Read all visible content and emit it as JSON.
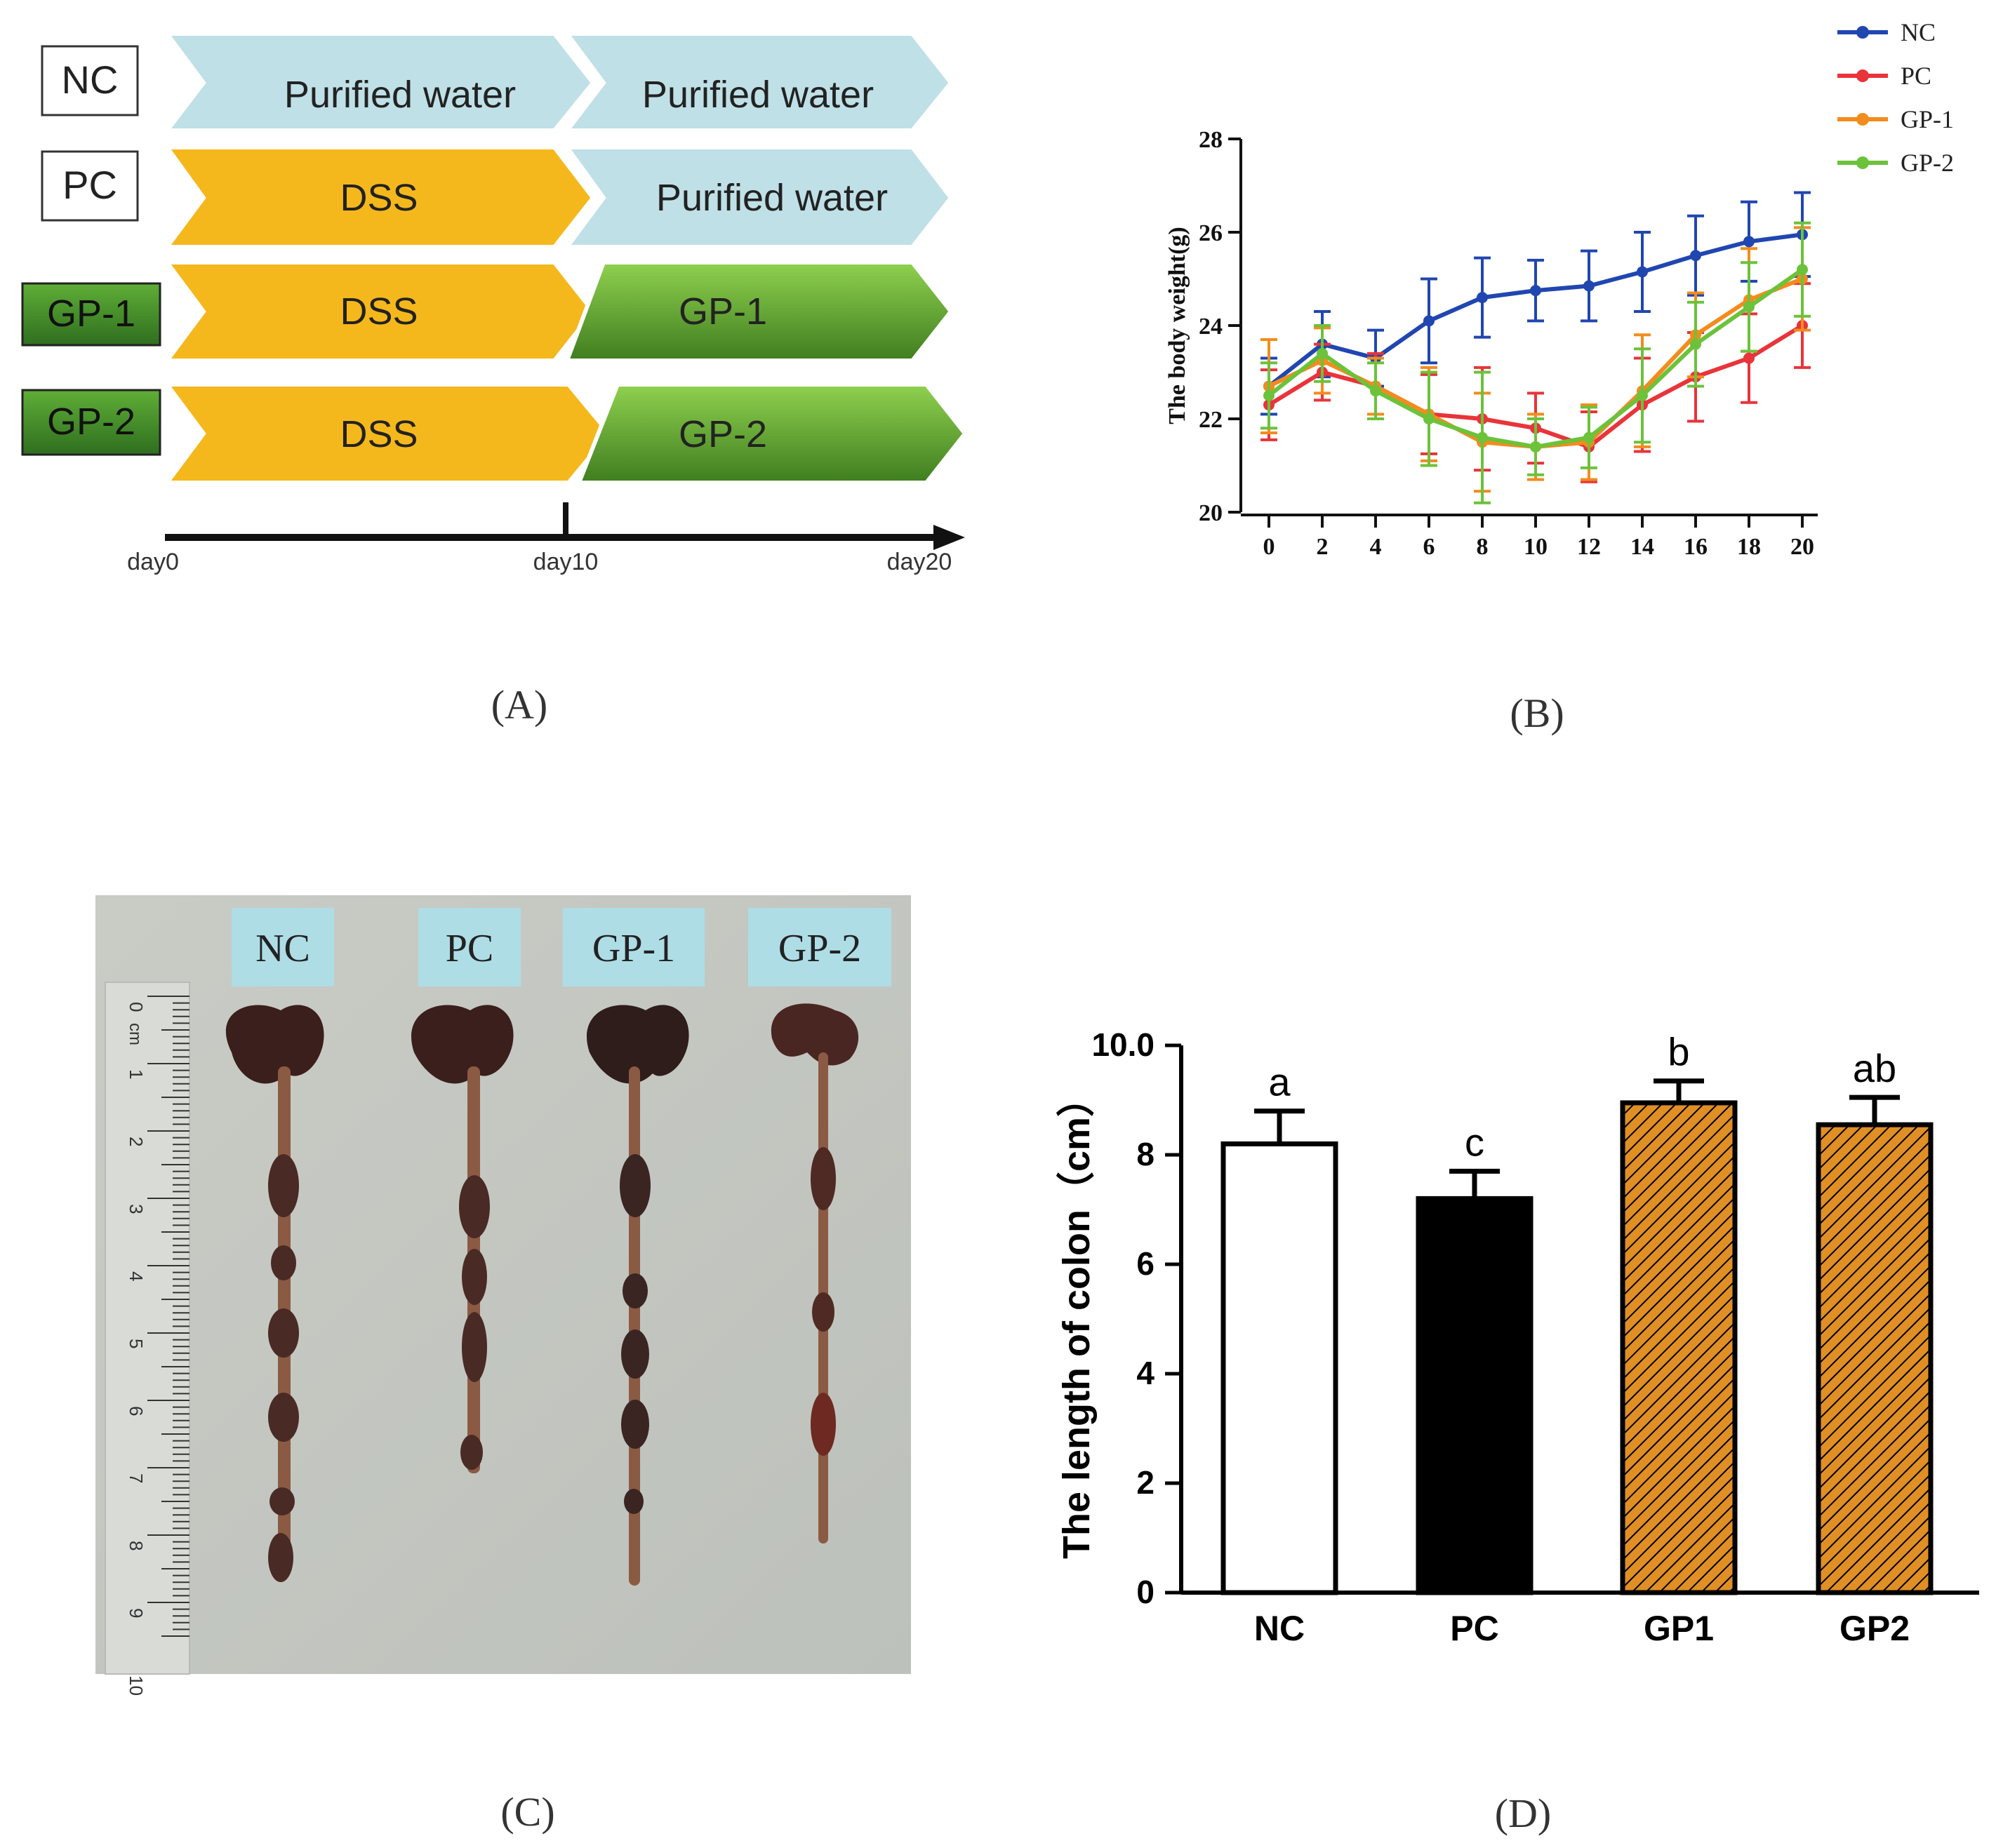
{
  "panel_a": {
    "groups": [
      {
        "label": "NC",
        "phase1": "Purified water",
        "phase2": "Purified water"
      },
      {
        "label": "PC",
        "phase1": "DSS",
        "phase2": "Purified water"
      },
      {
        "label": "GP-1",
        "phase1": "DSS",
        "phase2": "GP-1"
      },
      {
        "label": "GP-2",
        "phase1": "DSS",
        "phase2": "GP-2"
      }
    ],
    "timeline": {
      "start": "day0",
      "mid": "day10",
      "end": "day20"
    },
    "caption": "(A)",
    "colors": {
      "water": "#bfe0e6",
      "dss": "#f5b81c",
      "gp_light": "#8fd14f",
      "gp_dark": "#3f7d1f",
      "label_green": "#3c8a2a"
    }
  },
  "panel_b": {
    "caption": "(B)",
    "legend": [
      "NC",
      "PC",
      "GP-1",
      "GP-2"
    ],
    "colors": {
      "NC": "#2046b0",
      "PC": "#e8343a",
      "GP-1": "#f28c1e",
      "GP-2": "#6cc23a"
    }
  },
  "panel_c": {
    "caption": "(C)",
    "labels": [
      "NC",
      "PC",
      "GP-1",
      "GP-2"
    ],
    "ruler_ticks": [
      "0",
      "cm",
      "1",
      "2",
      "3",
      "4",
      "5",
      "6",
      "7",
      "8",
      "9",
      "10"
    ]
  },
  "panel_d": {
    "caption": "(D)",
    "colors": {
      "hatch_fill": "#e08f25"
    }
  },
  "chart_data": [
    {
      "type": "line",
      "title": "",
      "xlabel": "",
      "ylabel": "The body weight(g)",
      "x": [
        0,
        2,
        4,
        6,
        8,
        10,
        12,
        14,
        16,
        18,
        20
      ],
      "xlim": [
        0,
        20
      ],
      "ylim": [
        20,
        28
      ],
      "yticks": [
        20,
        22,
        24,
        26,
        28
      ],
      "series": [
        {
          "name": "NC",
          "values": [
            22.7,
            23.6,
            23.3,
            24.1,
            24.6,
            24.75,
            24.85,
            25.15,
            25.5,
            25.8,
            25.95
          ],
          "errors": [
            0.6,
            0.7,
            0.6,
            0.9,
            0.85,
            0.65,
            0.75,
            0.85,
            0.85,
            0.85,
            0.9
          ]
        },
        {
          "name": "PC",
          "values": [
            22.3,
            23.0,
            22.7,
            22.1,
            22.0,
            21.8,
            21.4,
            22.3,
            22.9,
            23.3,
            24.0
          ],
          "errors": [
            0.75,
            0.6,
            0.7,
            0.85,
            1.1,
            0.75,
            0.75,
            1.0,
            0.95,
            0.95,
            0.9
          ]
        },
        {
          "name": "GP-1",
          "values": [
            22.7,
            23.25,
            22.7,
            22.1,
            21.5,
            21.4,
            21.5,
            22.6,
            23.8,
            24.55,
            25.0
          ],
          "errors": [
            1.0,
            0.7,
            0.6,
            1.0,
            1.05,
            0.7,
            0.8,
            1.2,
            0.9,
            1.1,
            1.1
          ]
        },
        {
          "name": "GP-2",
          "values": [
            22.5,
            23.4,
            22.6,
            22.0,
            21.6,
            21.4,
            21.6,
            22.5,
            23.6,
            24.4,
            25.2
          ],
          "errors": [
            0.7,
            0.6,
            0.6,
            1.0,
            1.4,
            0.6,
            0.65,
            1.0,
            0.9,
            0.95,
            1.0
          ]
        }
      ]
    },
    {
      "type": "bar",
      "title": "",
      "xlabel": "",
      "ylabel": "The length of colon（cm）",
      "categories": [
        "NC",
        "PC",
        "GP1",
        "GP2"
      ],
      "values": [
        8.2,
        7.2,
        8.95,
        8.55
      ],
      "errors": [
        0.6,
        0.5,
        0.4,
        0.5
      ],
      "letters": [
        "a",
        "c",
        "b",
        "ab"
      ],
      "ylim": [
        0,
        10
      ],
      "yticks": [
        "0",
        "2",
        "4",
        "6",
        "8",
        "10.0"
      ]
    }
  ]
}
